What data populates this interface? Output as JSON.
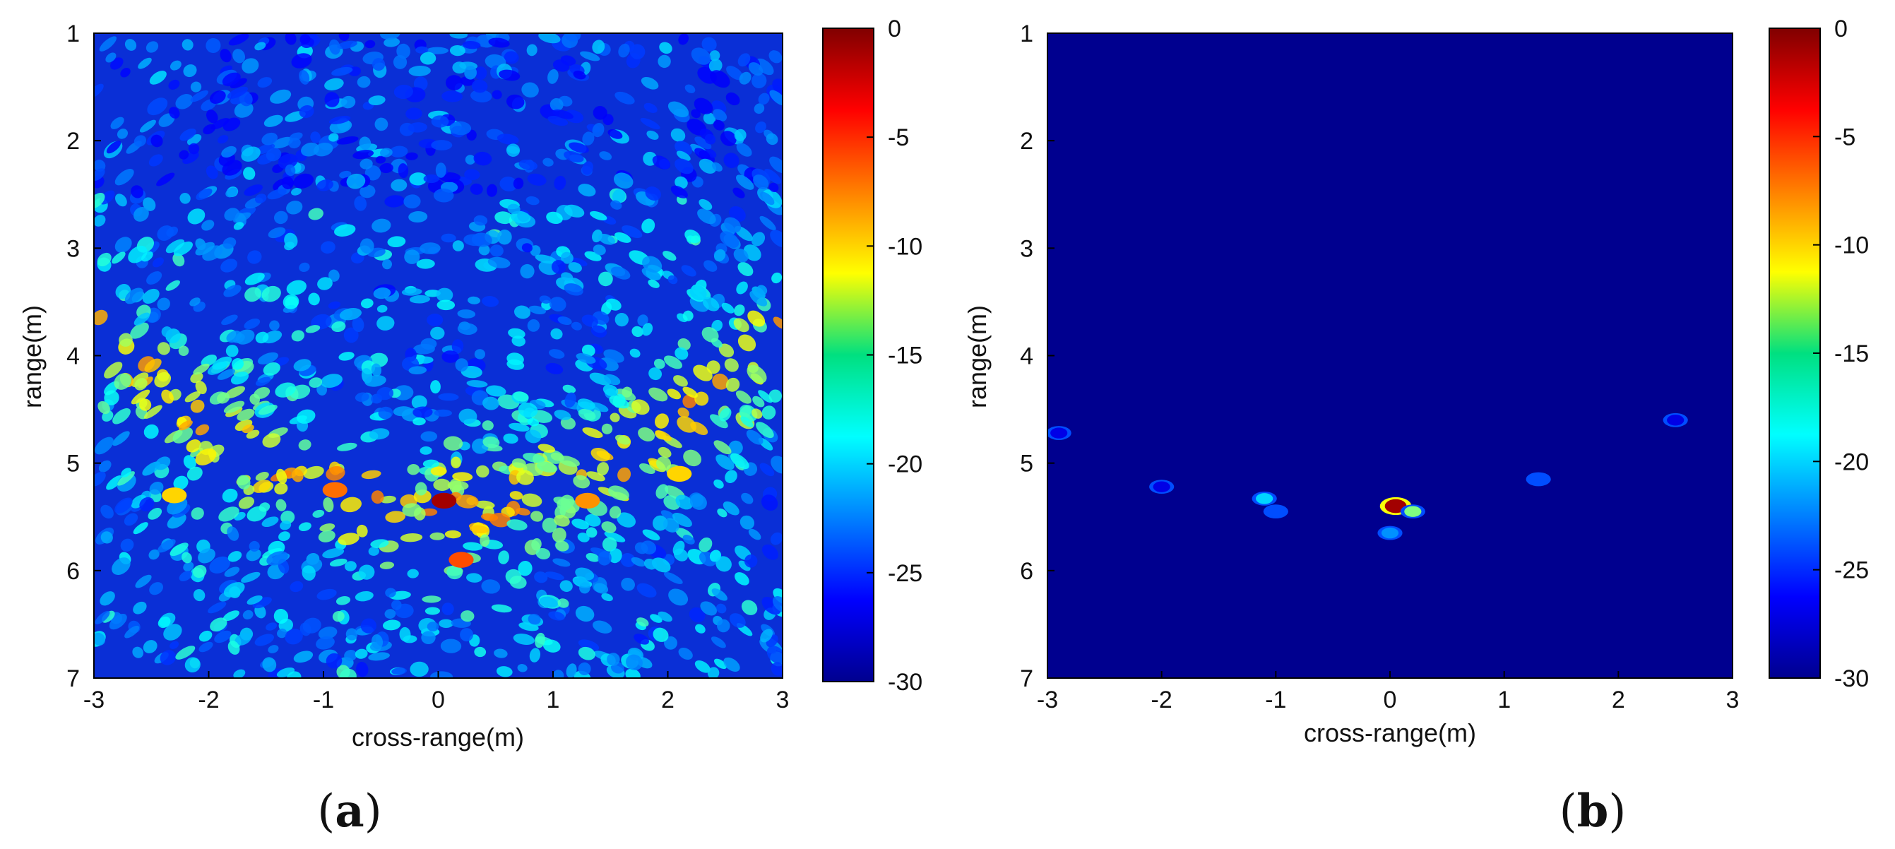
{
  "figure": {
    "panel_labels": [
      "(a)",
      "(b)"
    ]
  },
  "chart_data": [
    {
      "type": "heatmap",
      "panel": "(a)",
      "xlabel": "cross-range(m)",
      "ylabel": "range(m)",
      "xlim": [
        -3,
        3
      ],
      "ylim": [
        1,
        7
      ],
      "y_reversed": true,
      "xticks": [
        -3,
        -2,
        -1,
        0,
        1,
        2,
        3
      ],
      "yticks": [
        1,
        2,
        3,
        4,
        5,
        6,
        7
      ],
      "colorbar": {
        "colormap": "jet",
        "clim": [
          -30,
          0
        ],
        "ticks": [
          0,
          -5,
          -10,
          -15,
          -20,
          -25,
          -30
        ]
      },
      "hot_spots": [
        {
          "x": 0.05,
          "y": 5.35,
          "value": -1
        },
        {
          "x": 0.2,
          "y": 5.9,
          "value": -6
        },
        {
          "x": -0.9,
          "y": 5.25,
          "value": -7
        },
        {
          "x": 1.3,
          "y": 5.35,
          "value": -8
        },
        {
          "x": -2.3,
          "y": 5.3,
          "value": -10
        },
        {
          "x": 2.1,
          "y": 5.1,
          "value": -10
        }
      ],
      "clutter_arc_center": {
        "x": 0,
        "y": 5.4
      }
    },
    {
      "type": "heatmap",
      "panel": "(b)",
      "xlabel": "cross-range(m)",
      "ylabel": "range(m)",
      "xlim": [
        -3,
        3
      ],
      "ylim": [
        1,
        7
      ],
      "y_reversed": true,
      "xticks": [
        -3,
        -2,
        -1,
        0,
        1,
        2,
        3
      ],
      "yticks": [
        1,
        2,
        3,
        4,
        5,
        6,
        7
      ],
      "colorbar": {
        "colormap": "jet",
        "clim": [
          -30,
          0
        ],
        "ticks": [
          0,
          -5,
          -10,
          -15,
          -20,
          -25,
          -30
        ]
      },
      "background_value": -30,
      "hot_spots": [
        {
          "x": 0.05,
          "y": 5.4,
          "value": -1
        },
        {
          "x": 0.2,
          "y": 5.45,
          "value": -15
        },
        {
          "x": 0.0,
          "y": 5.65,
          "value": -22
        },
        {
          "x": -1.1,
          "y": 5.33,
          "value": -20
        },
        {
          "x": -1.0,
          "y": 5.45,
          "value": -24
        },
        {
          "x": 1.3,
          "y": 5.15,
          "value": -24
        },
        {
          "x": -2.0,
          "y": 5.22,
          "value": -27
        },
        {
          "x": 2.5,
          "y": 4.6,
          "value": -27
        },
        {
          "x": -2.9,
          "y": 4.72,
          "value": -27
        }
      ]
    }
  ]
}
